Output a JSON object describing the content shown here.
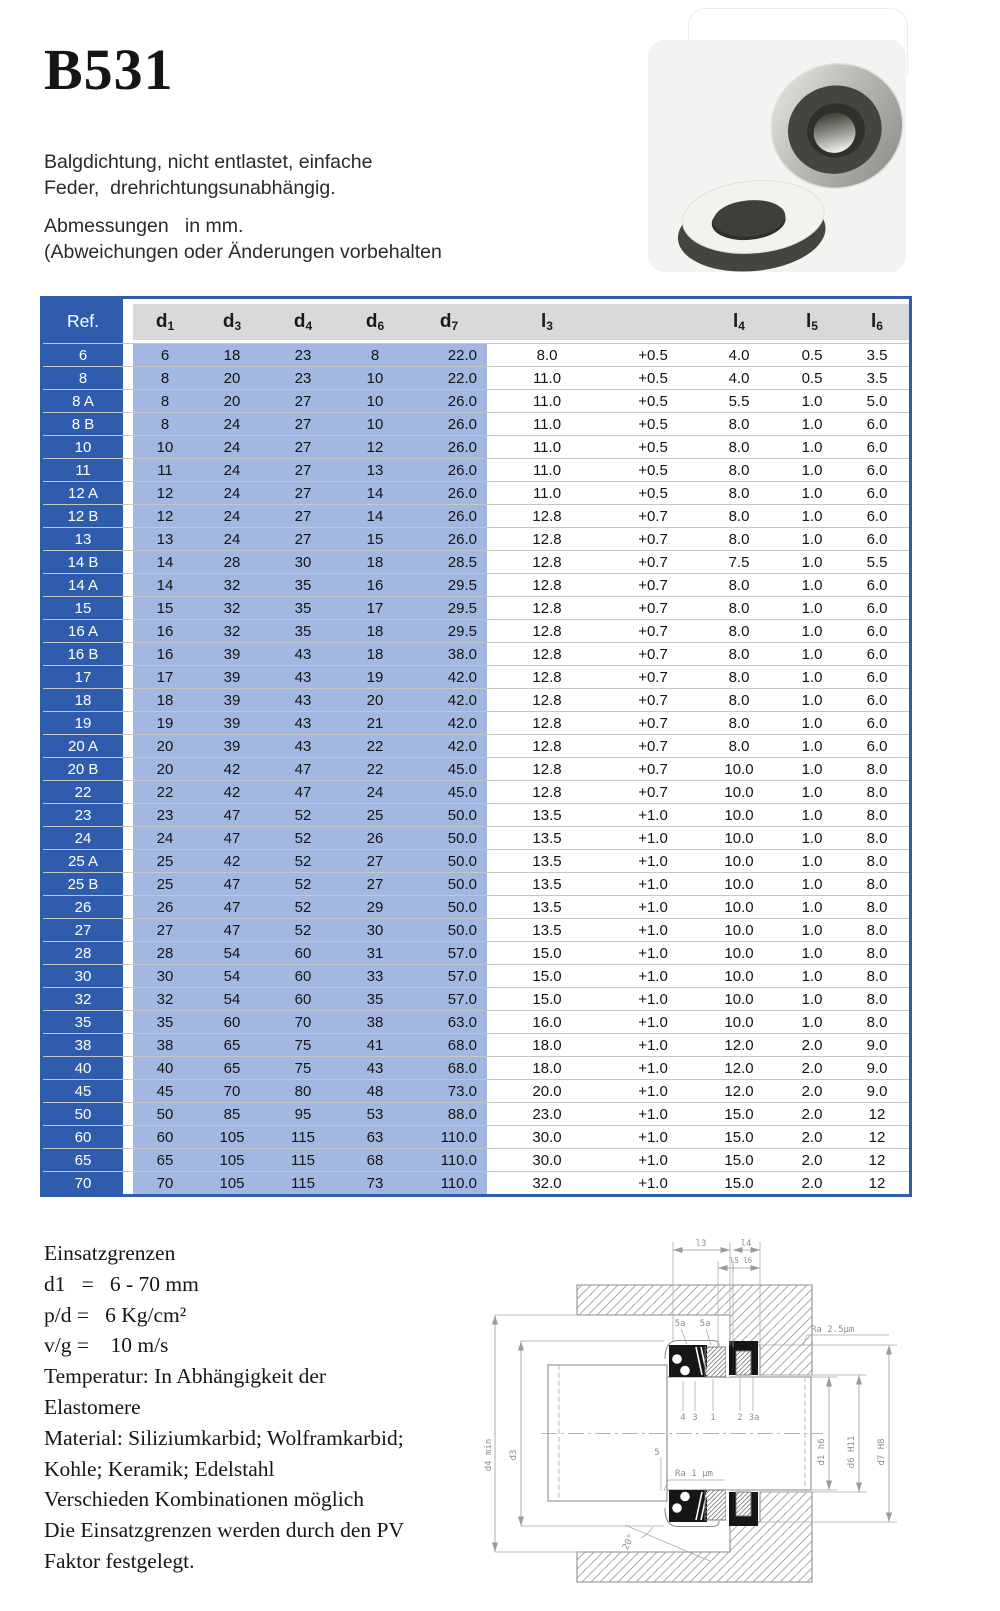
{
  "header": {
    "title": "B531",
    "description_lines": [
      "Balgdichtung, nicht entlastet, einfache",
      "Feder,  drehrichtungsunabhängig."
    ],
    "dimension_note_lines": [
      "Abmessungen   in mm.",
      "(Abweichungen oder Änderungen vorbehalten"
    ]
  },
  "table": {
    "ref_header": "Ref.",
    "columns": [
      {
        "base": "d",
        "sub": "1"
      },
      {
        "base": "d",
        "sub": "3"
      },
      {
        "base": "d",
        "sub": "4"
      },
      {
        "base": "d",
        "sub": "6"
      },
      {
        "base": "d",
        "sub": "7"
      },
      {
        "base": "l",
        "sub": "3"
      },
      {
        "base": "l",
        "sub": "4"
      },
      {
        "base": "l",
        "sub": "5"
      },
      {
        "base": "l",
        "sub": "6"
      }
    ],
    "rows": [
      {
        "ref": "6",
        "values": [
          "6",
          "18",
          "23",
          "8",
          "22.0",
          "8.0",
          "+0.5",
          "4.0",
          "0.5",
          "3.5"
        ]
      },
      {
        "ref": "8",
        "values": [
          "8",
          "20",
          "23",
          "10",
          "22.0",
          "11.0",
          "+0.5",
          "4.0",
          "0.5",
          "3.5"
        ]
      },
      {
        "ref": "8 A",
        "values": [
          "8",
          "20",
          "27",
          "10",
          "26.0",
          "11.0",
          "+0.5",
          "5.5",
          "1.0",
          "5.0"
        ]
      },
      {
        "ref": "8 B",
        "values": [
          "8",
          "24",
          "27",
          "10",
          "26.0",
          "11.0",
          "+0.5",
          "8.0",
          "1.0",
          "6.0"
        ]
      },
      {
        "ref": "10",
        "values": [
          "10",
          "24",
          "27",
          "12",
          "26.0",
          "11.0",
          "+0.5",
          "8.0",
          "1.0",
          "6.0"
        ]
      },
      {
        "ref": "11",
        "values": [
          "11",
          "24",
          "27",
          "13",
          "26.0",
          "11.0",
          "+0.5",
          "8.0",
          "1.0",
          "6.0"
        ]
      },
      {
        "ref": "12 A",
        "values": [
          "12",
          "24",
          "27",
          "14",
          "26.0",
          "11.0",
          "+0.5",
          "8.0",
          "1.0",
          "6.0"
        ]
      },
      {
        "ref": "12 B",
        "values": [
          "12",
          "24",
          "27",
          "14",
          "26.0",
          "12.8",
          "+0.7",
          "8.0",
          "1.0",
          "6.0"
        ]
      },
      {
        "ref": "13",
        "values": [
          "13",
          "24",
          "27",
          "15",
          "26.0",
          "12.8",
          "+0.7",
          "8.0",
          "1.0",
          "6.0"
        ]
      },
      {
        "ref": "14 B",
        "values": [
          "14",
          "28",
          "30",
          "18",
          "28.5",
          "12.8",
          "+0.7",
          "7.5",
          "1.0",
          "5.5"
        ]
      },
      {
        "ref": "14 A",
        "values": [
          "14",
          "32",
          "35",
          "16",
          "29.5",
          "12.8",
          "+0.7",
          "8.0",
          "1.0",
          "6.0"
        ]
      },
      {
        "ref": "15",
        "values": [
          "15",
          "32",
          "35",
          "17",
          "29.5",
          "12.8",
          "+0.7",
          "8.0",
          "1.0",
          "6.0"
        ]
      },
      {
        "ref": "16 A",
        "values": [
          "16",
          "32",
          "35",
          "18",
          "29.5",
          "12.8",
          "+0.7",
          "8.0",
          "1.0",
          "6.0"
        ]
      },
      {
        "ref": "16 B",
        "values": [
          "16",
          "39",
          "43",
          "18",
          "38.0",
          "12.8",
          "+0.7",
          "8.0",
          "1.0",
          "6.0"
        ]
      },
      {
        "ref": "17",
        "values": [
          "17",
          "39",
          "43",
          "19",
          "42.0",
          "12.8",
          "+0.7",
          "8.0",
          "1.0",
          "6.0"
        ]
      },
      {
        "ref": "18",
        "values": [
          "18",
          "39",
          "43",
          "20",
          "42.0",
          "12.8",
          "+0.7",
          "8.0",
          "1.0",
          "6.0"
        ]
      },
      {
        "ref": "19",
        "values": [
          "19",
          "39",
          "43",
          "21",
          "42.0",
          "12.8",
          "+0.7",
          "8.0",
          "1.0",
          "6.0"
        ]
      },
      {
        "ref": "20 A",
        "values": [
          "20",
          "39",
          "43",
          "22",
          "42.0",
          "12.8",
          "+0.7",
          "8.0",
          "1.0",
          "6.0"
        ]
      },
      {
        "ref": "20 B",
        "values": [
          "20",
          "42",
          "47",
          "22",
          "45.0",
          "12.8",
          "+0.7",
          "10.0",
          "1.0",
          "8.0"
        ]
      },
      {
        "ref": "22",
        "values": [
          "22",
          "42",
          "47",
          "24",
          "45.0",
          "12.8",
          "+0.7",
          "10.0",
          "1.0",
          "8.0"
        ]
      },
      {
        "ref": "23",
        "values": [
          "23",
          "47",
          "52",
          "25",
          "50.0",
          "13.5",
          "+1.0",
          "10.0",
          "1.0",
          "8.0"
        ]
      },
      {
        "ref": "24",
        "values": [
          "24",
          "47",
          "52",
          "26",
          "50.0",
          "13.5",
          "+1.0",
          "10.0",
          "1.0",
          "8.0"
        ]
      },
      {
        "ref": "25 A",
        "values": [
          "25",
          "42",
          "52",
          "27",
          "50.0",
          "13.5",
          "+1.0",
          "10.0",
          "1.0",
          "8.0"
        ]
      },
      {
        "ref": "25 B",
        "values": [
          "25",
          "47",
          "52",
          "27",
          "50.0",
          "13.5",
          "+1.0",
          "10.0",
          "1.0",
          "8.0"
        ]
      },
      {
        "ref": "26",
        "values": [
          "26",
          "47",
          "52",
          "29",
          "50.0",
          "13.5",
          "+1.0",
          "10.0",
          "1.0",
          "8.0"
        ]
      },
      {
        "ref": "27",
        "values": [
          "27",
          "47",
          "52",
          "30",
          "50.0",
          "13.5",
          "+1.0",
          "10.0",
          "1.0",
          "8.0"
        ]
      },
      {
        "ref": "28",
        "values": [
          "28",
          "54",
          "60",
          "31",
          "57.0",
          "15.0",
          "+1.0",
          "10.0",
          "1.0",
          "8.0"
        ]
      },
      {
        "ref": "30",
        "values": [
          "30",
          "54",
          "60",
          "33",
          "57.0",
          "15.0",
          "+1.0",
          "10.0",
          "1.0",
          "8.0"
        ]
      },
      {
        "ref": "32",
        "values": [
          "32",
          "54",
          "60",
          "35",
          "57.0",
          "15.0",
          "+1.0",
          "10.0",
          "1.0",
          "8.0"
        ]
      },
      {
        "ref": "35",
        "values": [
          "35",
          "60",
          "70",
          "38",
          "63.0",
          "16.0",
          "+1.0",
          "10.0",
          "1.0",
          "8.0"
        ]
      },
      {
        "ref": "38",
        "values": [
          "38",
          "65",
          "75",
          "41",
          "68.0",
          "18.0",
          "+1.0",
          "12.0",
          "2.0",
          "9.0"
        ]
      },
      {
        "ref": "40",
        "values": [
          "40",
          "65",
          "75",
          "43",
          "68.0",
          "18.0",
          "+1.0",
          "12.0",
          "2.0",
          "9.0"
        ]
      },
      {
        "ref": "45",
        "values": [
          "45",
          "70",
          "80",
          "48",
          "73.0",
          "20.0",
          "+1.0",
          "12.0",
          "2.0",
          "9.0"
        ]
      },
      {
        "ref": "50",
        "values": [
          "50",
          "85",
          "95",
          "53",
          "88.0",
          "23.0",
          "+1.0",
          "15.0",
          "2.0",
          "12"
        ]
      },
      {
        "ref": "60",
        "values": [
          "60",
          "105",
          "115",
          "63",
          "110.0",
          "30.0",
          "+1.0",
          "15.0",
          "2.0",
          "12"
        ]
      },
      {
        "ref": "65",
        "values": [
          "65",
          "105",
          "115",
          "68",
          "110.0",
          "30.0",
          "+1.0",
          "15.0",
          "2.0",
          "12"
        ]
      },
      {
        "ref": "70",
        "values": [
          "70",
          "105",
          "115",
          "73",
          "110.0",
          "32.0",
          "+1.0",
          "15.0",
          "2.0",
          "12"
        ]
      }
    ]
  },
  "limits": {
    "lines": [
      "Einsatzgrenzen",
      "d1   =   6 - 70 mm",
      "p/d =   6 Kg/cm²",
      "v/g =    10 m/s",
      "Temperatur: In Abhängigkeit der",
      "Elastomere",
      "Material: Siliziumkarbid; Wolframkarbid;",
      "Kohle; Keramik; Edelstahl",
      "Verschieden Kombinationen möglich",
      "Die Einsatzgrenzen werden durch den PV",
      "Faktor festgelegt."
    ]
  },
  "drawing": {
    "labels": {
      "l3": "l3",
      "l4": "l4",
      "l5l6": "l5 l6",
      "item5a_left": "5a",
      "item5a_right": "5a",
      "ra_top": "Ra  2.5μm",
      "ra_bottom": "Ra  1 μm",
      "i4": "4",
      "i3": "3",
      "i1": "1",
      "i2": "2",
      "i3a": "3a",
      "i5": "5",
      "angle": "20°",
      "d4": "d4 min",
      "d3": "d3",
      "d1": "d1 h6",
      "d6": "d6 H11",
      "d7": "d7 H8"
    }
  },
  "colors": {
    "table_blue": "#2f5cac",
    "table_light_blue": "#a3b8e0",
    "header_gray": "#d9d9d9",
    "page_bg": "#ffffff"
  }
}
